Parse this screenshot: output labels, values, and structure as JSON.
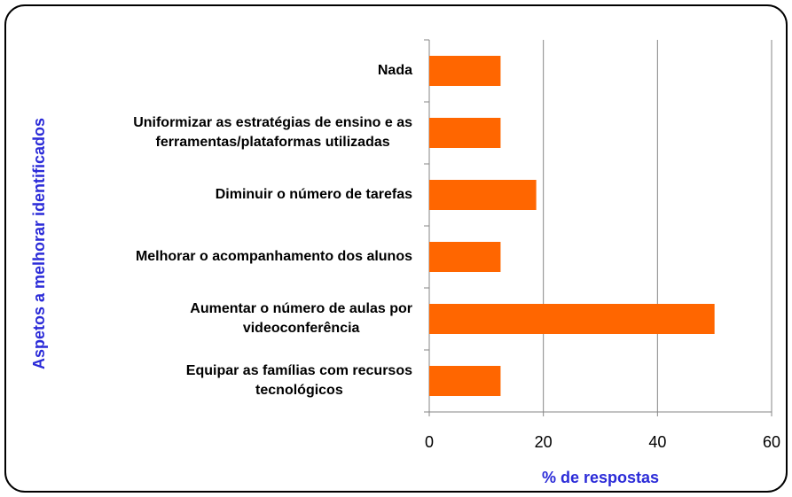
{
  "chart_data": {
    "type": "barh",
    "categories": [
      "Nada",
      "Uniformizar as estratégias de ensino e as\nferramentas/plataformas utilizadas",
      "Diminuir o número de tarefas ",
      "Melhorar o acompanhamento dos alunos",
      "Aumentar o número de aulas por\nvideoconferência",
      "Equipar as famílias com recursos\ntecnológicos"
    ],
    "values": [
      12.5,
      12.5,
      18.75,
      12.5,
      50,
      12.5
    ],
    "color": "#ff6600",
    "xlim": [
      0,
      60
    ],
    "xticks": [
      0,
      20,
      40,
      60
    ],
    "grid": true,
    "xlabel": "% de respostas",
    "ylabel": "Aspetos a melhorar identificados"
  }
}
